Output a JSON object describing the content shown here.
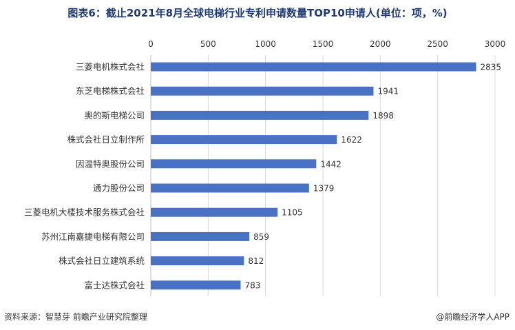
{
  "title": "图表6：截止2021年8月全球电梯行业专利申请数量TOP10申请人(单位：项，%)",
  "footer": {
    "source": "资料来源：智慧芽 前瞻产业研究院整理",
    "credit": "@前瞻经济学人APP"
  },
  "colors": {
    "bar": "#4a72c4",
    "grid": "#d9d9d9",
    "axis": "#bfbfbf"
  },
  "chart_data": {
    "type": "bar",
    "orientation": "horizontal",
    "title": "图表6：截止2021年8月全球电梯行业专利申请数量TOP10申请人(单位：项，%)",
    "categories": [
      "三菱电机株式会社",
      "东芝电梯株式会社",
      "奥的斯电梯公司",
      "株式会社日立制作所",
      "因温特奥股份公司",
      "通力股份公司",
      "三菱电机大楼技术服务株式会社",
      "苏州江南嘉捷电梯有限公司",
      "株式会社日立建筑系统",
      "富士达株式会社"
    ],
    "values": [
      2835,
      1941,
      1898,
      1622,
      1442,
      1379,
      1105,
      859,
      812,
      783
    ],
    "xlim": [
      0,
      3000
    ],
    "ticks": [
      "0",
      "500",
      "1000",
      "1500",
      "2000",
      "2500",
      "3000"
    ],
    "tick_values": [
      0,
      500,
      1000,
      1500,
      2000,
      2500,
      3000
    ],
    "axis_position": "top",
    "grid": true,
    "data_labels": true
  }
}
